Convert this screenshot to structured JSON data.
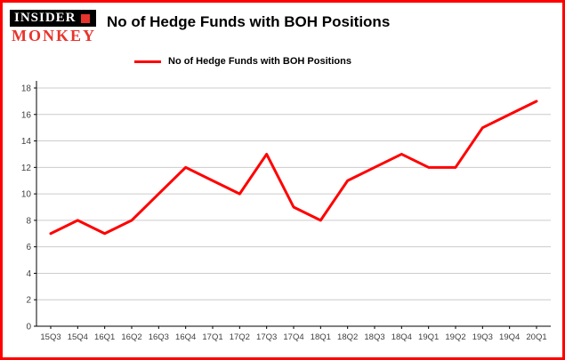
{
  "brand": {
    "line1": "INSIDER",
    "line2": "MONKEY"
  },
  "header": {
    "title": "No of Hedge Funds with BOH Positions"
  },
  "legend": {
    "label": "No of Hedge Funds with BOH Positions"
  },
  "colors": {
    "accent": "#ff0000",
    "frame_border": "#ff0000",
    "grid": "#cccccc",
    "axis": "#000000",
    "tick_text": "#404040",
    "logo_red": "#e8342c"
  },
  "chart_data": {
    "type": "line",
    "title": "No of Hedge Funds with BOH Positions",
    "categories": [
      "15Q3",
      "15Q4",
      "16Q1",
      "16Q2",
      "16Q3",
      "16Q4",
      "17Q1",
      "17Q2",
      "17Q3",
      "17Q4",
      "18Q1",
      "18Q2",
      "18Q3",
      "18Q4",
      "19Q1",
      "19Q2",
      "19Q3",
      "19Q4",
      "20Q1"
    ],
    "values": [
      7,
      8,
      7,
      8,
      10,
      12,
      11,
      10,
      13,
      9,
      8,
      11,
      12,
      13,
      12,
      12,
      15,
      16,
      17
    ],
    "series_name": "No of Hedge Funds with BOH Positions",
    "xlabel": "",
    "ylabel": "",
    "ylim": [
      0,
      18
    ],
    "ytick_step": 2,
    "grid": true,
    "legend_position": "top-left",
    "line_color": "#ff0000"
  }
}
